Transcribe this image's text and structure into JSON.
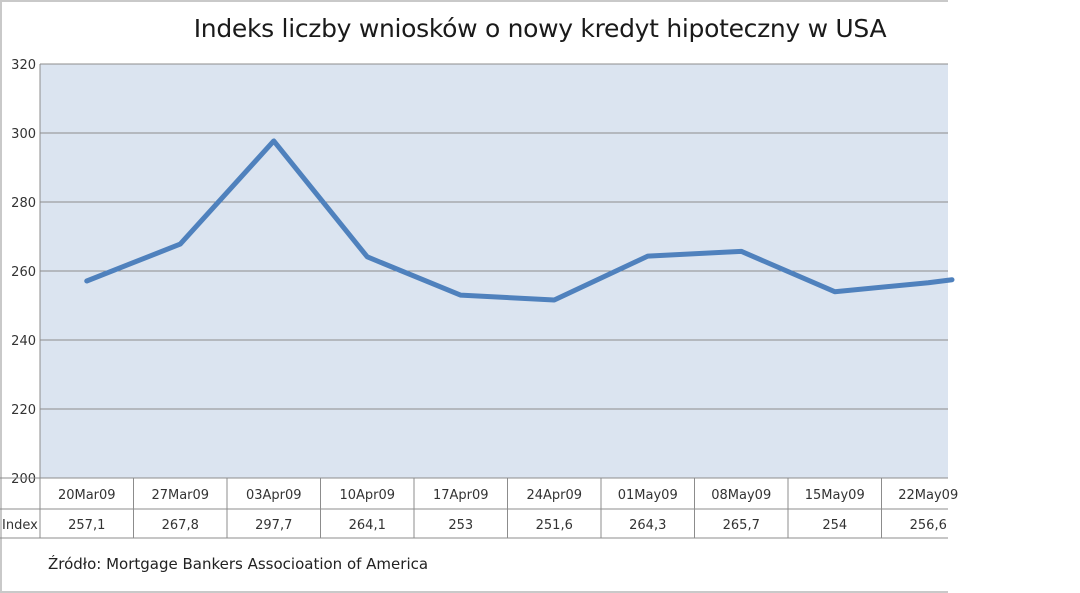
{
  "chart_data": {
    "type": "line",
    "title": "Indeks liczby wniosków o nowy kredyt hipoteczny w USA",
    "categories": [
      "20Mar09",
      "27Mar09",
      "03Apr09",
      "10Apr09",
      "17Apr09",
      "24Apr09",
      "01May09",
      "08May09",
      "15May09",
      "22May09"
    ],
    "series": [
      {
        "name": "Index",
        "values": [
          257.1,
          267.8,
          297.7,
          264.1,
          253,
          251.6,
          264.3,
          265.7,
          254,
          256.6
        ],
        "labels": [
          "257,1",
          "267,8",
          "297,7",
          "264,1",
          "253",
          "251,6",
          "264,3",
          "265,7",
          "254",
          "256,6"
        ],
        "color": "#4f81bd"
      }
    ],
    "trailing_value": 260,
    "ylim": [
      200,
      320
    ],
    "yticks": [
      200,
      220,
      240,
      260,
      280,
      300,
      320
    ],
    "ytick_labels": [
      "200",
      "220",
      "240",
      "260",
      "280",
      "300",
      "320"
    ],
    "grid": true,
    "data_table": true,
    "source": "Źródło:  Mortgage Bankers Associoation of America"
  }
}
